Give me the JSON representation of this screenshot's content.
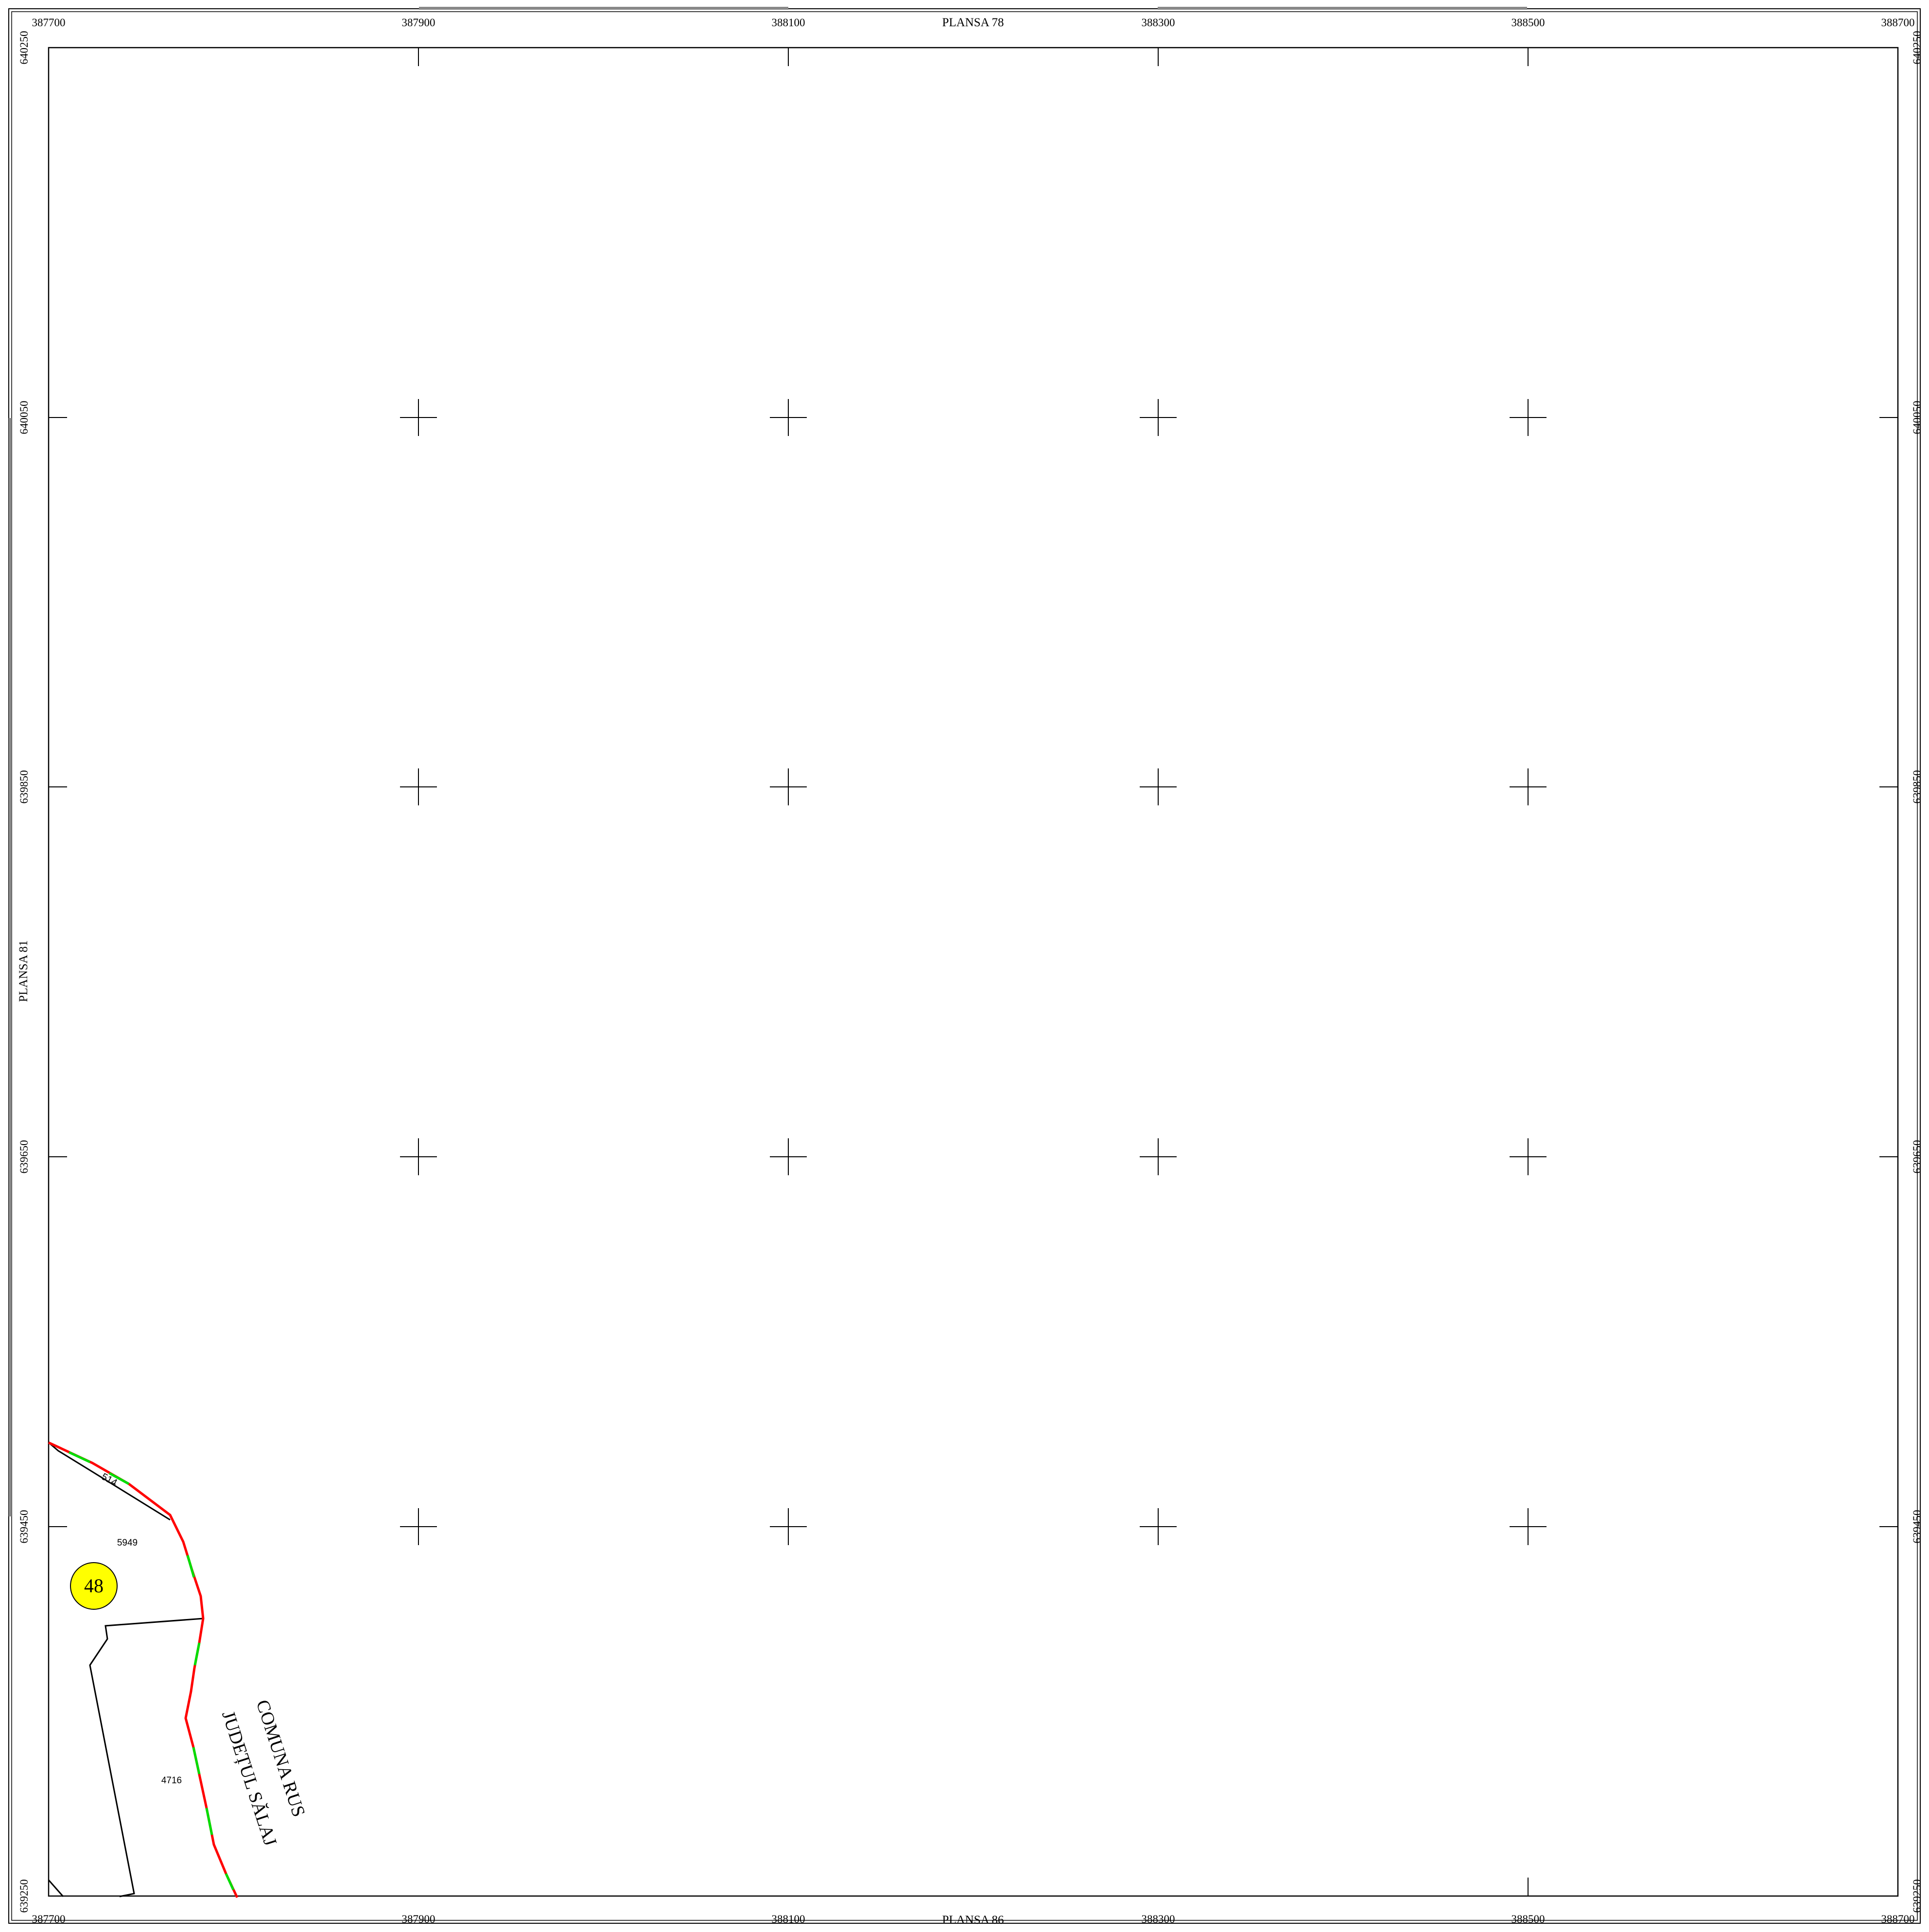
{
  "sheets": {
    "top": "PLANSA  78",
    "bottom": "PLANSA  86",
    "left": "PLANSA  81"
  },
  "grid": {
    "x_labels": [
      "387700",
      "387900",
      "388100",
      "388300",
      "388500",
      "388700"
    ],
    "y_labels": [
      "640250",
      "640050",
      "639850",
      "639650",
      "639450",
      "639250"
    ]
  },
  "parcels": {
    "top_strip": "514",
    "upper": "5949",
    "lower": "4716"
  },
  "sector_badge": {
    "label": "48",
    "fill": "#ffff00"
  },
  "boundary_label": {
    "line1": "COMUNA RUS",
    "line2": "JUDEȚUL SĂLAJ"
  },
  "colors": {
    "boundary_red": "#ff0000",
    "boundary_green": "#00dd00",
    "frame": "#000000"
  }
}
